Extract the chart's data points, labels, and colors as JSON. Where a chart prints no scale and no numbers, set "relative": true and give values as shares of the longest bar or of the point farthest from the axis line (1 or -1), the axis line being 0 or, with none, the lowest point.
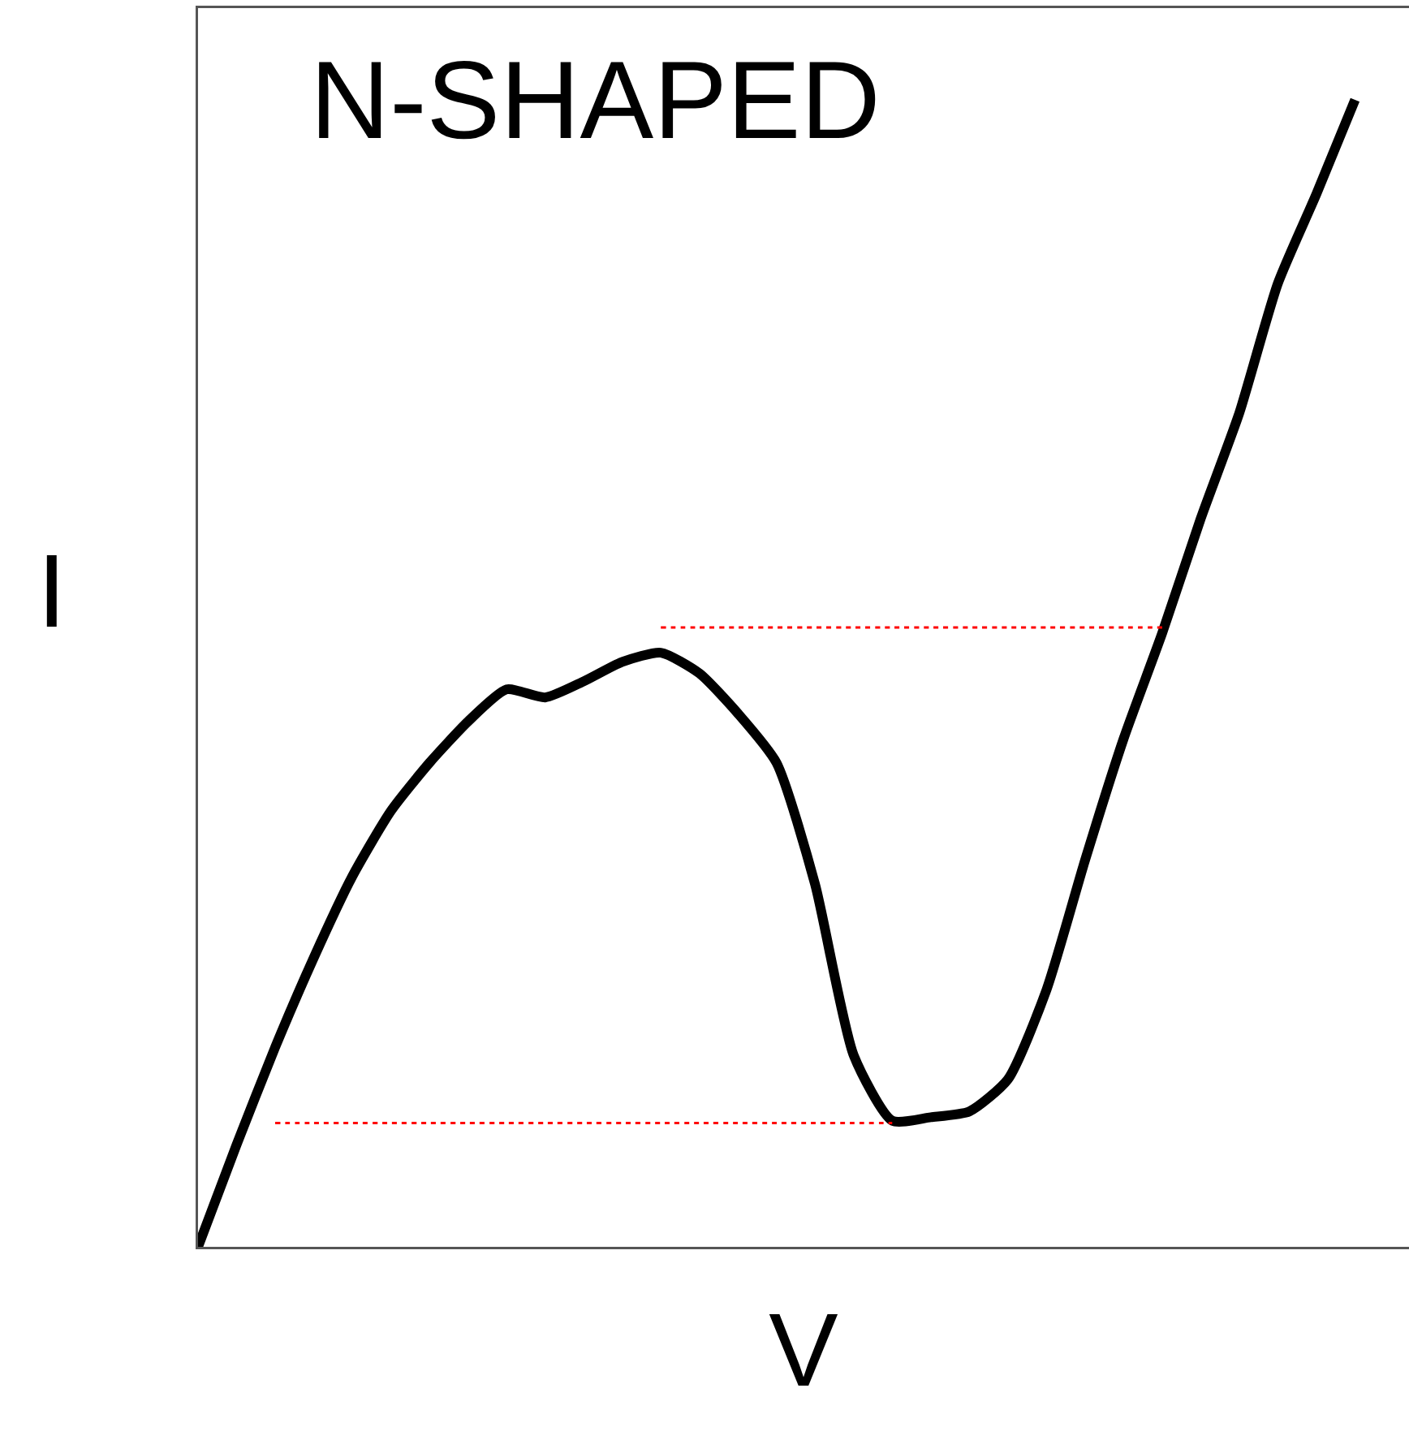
{
  "chart_data": {
    "type": "line",
    "title": "N-SHAPED",
    "xlabel": "V",
    "ylabel": "I",
    "relative": true,
    "categories": [
      null,
      null,
      null,
      null,
      null,
      null,
      null,
      null,
      null,
      null,
      null,
      null,
      null,
      null,
      null,
      null,
      null,
      null,
      null,
      null,
      null,
      null,
      null,
      null,
      null,
      null,
      null,
      null,
      null,
      null,
      null
    ],
    "series": [
      {
        "color": "#000000",
        "line_style": "solid",
        "values": [
          0,
          0.089,
          0.174,
          0.252,
          0.323,
          0.38,
          0.422,
          0.458,
          0.486,
          0.479,
          0.493,
          0.51,
          0.518,
          0.5,
          0.465,
          0.422,
          0.316,
          0.167,
          0.11,
          0.113,
          0.118,
          0.146,
          0.224,
          0.337,
          0.443,
          0.535,
          0.635,
          0.727,
          0.84,
          0.918,
          1
        ]
      },
      {
        "color": "#ff0000",
        "line_style": "dotted",
        "values": [
          null,
          null,
          0.108,
          0.108,
          0.108,
          0.108,
          0.108,
          0.108,
          0.108,
          0.108,
          0.108,
          0.108,
          0.108,
          0.108,
          0.108,
          0.108,
          0.108,
          0.108,
          0.108,
          null,
          null,
          null,
          null,
          null,
          null,
          null,
          null,
          null,
          null,
          null,
          null
        ]
      },
      {
        "color": "#ff0000",
        "line_style": "dotted",
        "values": [
          null,
          null,
          null,
          null,
          null,
          null,
          null,
          null,
          null,
          null,
          null,
          null,
          0.54,
          0.54,
          0.54,
          0.54,
          0.54,
          0.54,
          0.54,
          0.54,
          0.54,
          0.54,
          0.54,
          0.54,
          0.54,
          0.54,
          null,
          null,
          null,
          null,
          null
        ]
      }
    ]
  }
}
